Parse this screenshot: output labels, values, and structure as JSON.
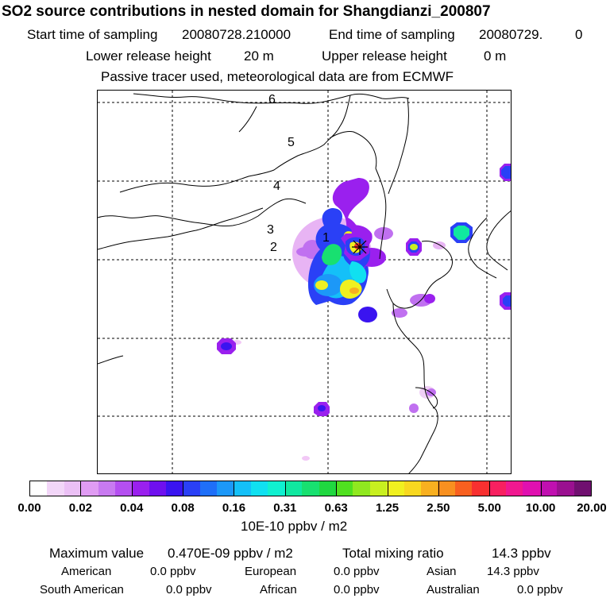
{
  "header": {
    "title": "SO2 source contributions in nested domain for Shangdianzi_200807",
    "start_label": "Start time of sampling",
    "start_value": "20080728.210000",
    "end_label": "End time of sampling",
    "end_value": "20080729.",
    "end_suffix": "0",
    "lower_label": "Lower release height",
    "lower_value": "20 m",
    "upper_label": "Upper release height",
    "upper_value": "0 m",
    "tracer_note": "Passive tracer used, meteorological data are from ECMWF"
  },
  "map": {
    "labels": [
      "6",
      "5",
      "4",
      "3",
      "2",
      "1"
    ]
  },
  "colorbar": {
    "tick_labels": [
      "0.00",
      "0.02",
      "0.04",
      "0.08",
      "0.16",
      "0.31",
      "0.63",
      "1.25",
      "2.50",
      "5.00",
      "10.00",
      "20.00"
    ],
    "unit": "10E-10 ppbv / m2",
    "colors": [
      "#ffffff",
      "#f2d6f8",
      "#ebc0f5",
      "#e09cf3",
      "#c87af0",
      "#b44ff0",
      "#9a20ee",
      "#6f10ee",
      "#3a14f0",
      "#2a40f6",
      "#1f6ff8",
      "#1c98f8",
      "#14c0f8",
      "#10e0f0",
      "#10f0d0",
      "#10e8a0",
      "#18e070",
      "#20d840",
      "#50e020",
      "#90e820",
      "#c8f020",
      "#f0f020",
      "#f8d820",
      "#f8b020",
      "#f89020",
      "#f86020",
      "#f83030",
      "#f82060",
      "#f01890",
      "#e010b0",
      "#c010b0",
      "#9a1090",
      "#701070"
    ]
  },
  "stats": {
    "max_label": "Maximum value",
    "max_value": "0.470E-09 ppbv / m2",
    "total_label": "Total mixing ratio",
    "total_value": "14.3 ppbv",
    "regions": [
      {
        "name": "American",
        "value": "0.0 ppbv"
      },
      {
        "name": "European",
        "value": "0.0 ppbv"
      },
      {
        "name": "Asian",
        "value": "14.3 ppbv"
      },
      {
        "name": "South American",
        "value": "0.0 ppbv"
      },
      {
        "name": "African",
        "value": "0.0 ppbv"
      },
      {
        "name": "Australian",
        "value": "0.0 ppbv"
      }
    ]
  }
}
